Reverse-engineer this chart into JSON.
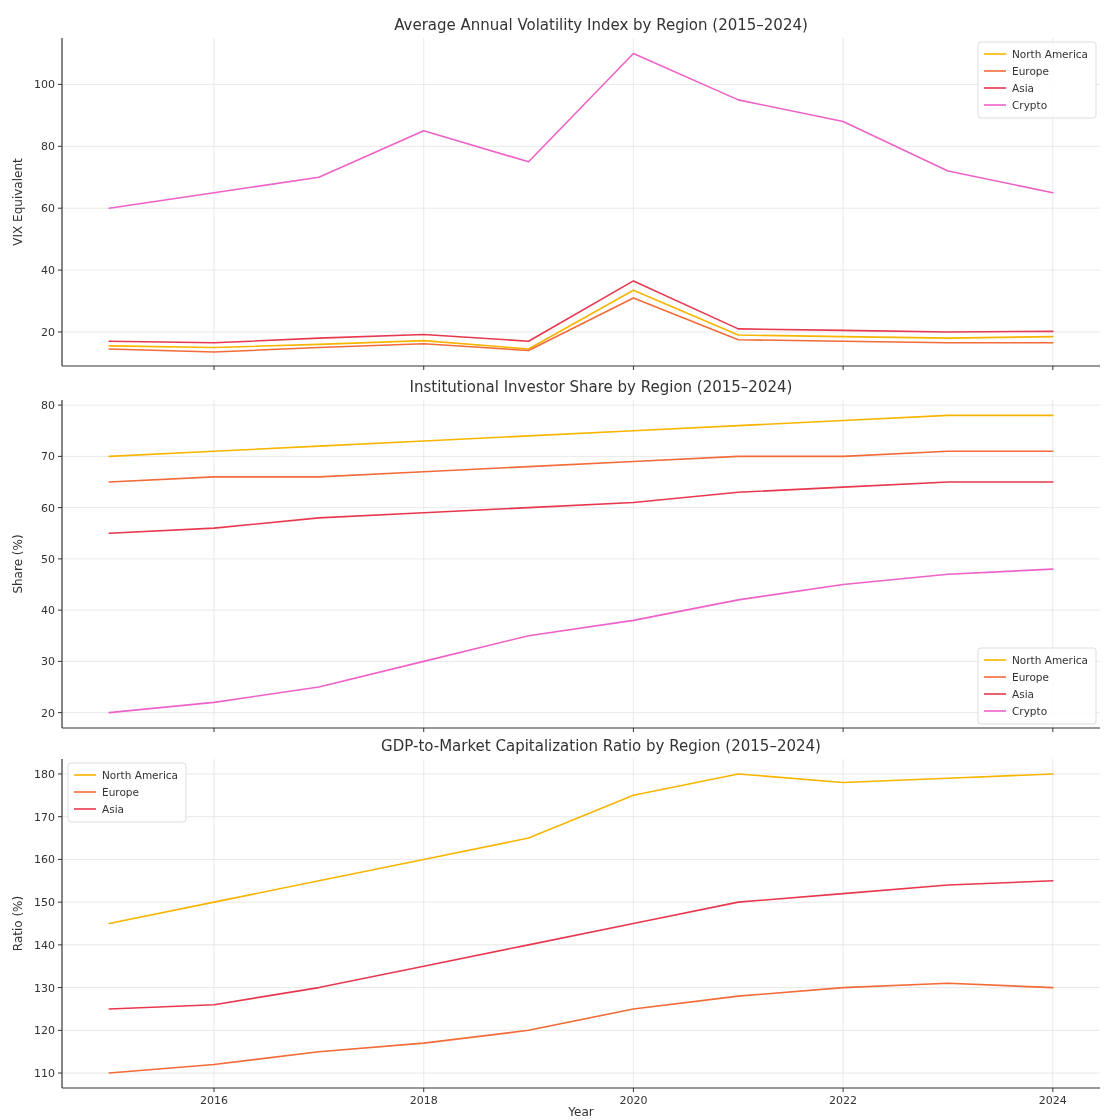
{
  "chart_data": [
    {
      "type": "line",
      "title": "Average Annual Volatility Index by Region (2015–2024)",
      "ylabel": "VIX Equivalent",
      "x": [
        2015,
        2016,
        2017,
        2018,
        2019,
        2020,
        2021,
        2022,
        2023,
        2024
      ],
      "xlim": [
        2014.55,
        2024.45
      ],
      "xticks": [
        2016,
        2018,
        2020,
        2022,
        2024
      ],
      "ylim": [
        9,
        115
      ],
      "yticks": [
        20,
        40,
        60,
        80,
        100
      ],
      "grid": true,
      "legend": "top right",
      "tick_labels": "y",
      "series": [
        {
          "name": "North America",
          "color": "#f7b500",
          "values": [
            15.5,
            15,
            16,
            17.2,
            14.5,
            33.5,
            19,
            18.5,
            18,
            18.5
          ]
        },
        {
          "name": "Europe",
          "color": "#f26b38",
          "values": [
            14.5,
            13.5,
            15,
            16.2,
            14,
            31,
            17.5,
            17,
            16.5,
            16.5
          ]
        },
        {
          "name": "Asia",
          "color": "#e8384f",
          "values": [
            17,
            16.5,
            18,
            19.2,
            17,
            36.5,
            21,
            20.5,
            20,
            20.2
          ]
        },
        {
          "name": "Crypto",
          "color": "#ee62c8",
          "values": [
            60,
            65,
            70,
            85,
            75,
            110,
            95,
            88,
            72,
            65
          ]
        }
      ]
    },
    {
      "type": "line",
      "title": "Institutional Investor Share by Region (2015–2024)",
      "ylabel": "Share (%)",
      "x": [
        2015,
        2016,
        2017,
        2018,
        2019,
        2020,
        2021,
        2022,
        2023,
        2024
      ],
      "xlim": [
        2014.55,
        2024.45
      ],
      "xticks": [
        2016,
        2018,
        2020,
        2022,
        2024
      ],
      "ylim": [
        17,
        81
      ],
      "yticks": [
        20,
        30,
        40,
        50,
        60,
        70,
        80
      ],
      "grid": true,
      "legend": "bottom right",
      "tick_labels": "y",
      "series": [
        {
          "name": "North America",
          "color": "#f7b500",
          "values": [
            70,
            71,
            72,
            73,
            74,
            75,
            76,
            77,
            78,
            78
          ]
        },
        {
          "name": "Europe",
          "color": "#f26b38",
          "values": [
            65,
            66,
            66,
            67,
            68,
            69,
            70,
            70,
            71,
            71
          ]
        },
        {
          "name": "Asia",
          "color": "#e8384f",
          "values": [
            55,
            56,
            58,
            59,
            60,
            61,
            63,
            64,
            65,
            65
          ]
        },
        {
          "name": "Crypto",
          "color": "#ee62c8",
          "values": [
            20,
            22,
            25,
            30,
            35,
            38,
            42,
            45,
            47,
            48
          ]
        }
      ]
    },
    {
      "type": "line",
      "title": "GDP-to-Market Capitalization Ratio by Region (2015–2024)",
      "xlabel": "Year",
      "ylabel": "Ratio (%)",
      "x": [
        2015,
        2016,
        2017,
        2018,
        2019,
        2020,
        2021,
        2022,
        2023,
        2024
      ],
      "xlim": [
        2014.55,
        2024.45
      ],
      "xticks": [
        2016,
        2018,
        2020,
        2022,
        2024
      ],
      "ylim": [
        106.5,
        183.5
      ],
      "yticks": [
        110,
        120,
        130,
        140,
        150,
        160,
        170,
        180
      ],
      "grid": true,
      "legend": "top left",
      "series": [
        {
          "name": "North America",
          "color": "#f7b500",
          "values": [
            145,
            150,
            155,
            160,
            165,
            175,
            180,
            178,
            179,
            180
          ]
        },
        {
          "name": "Europe",
          "color": "#f26b38",
          "values": [
            110,
            112,
            115,
            117,
            120,
            125,
            128,
            130,
            131,
            130
          ]
        },
        {
          "name": "Asia",
          "color": "#e8384f",
          "values": [
            125,
            126,
            130,
            135,
            140,
            145,
            150,
            152,
            154,
            155
          ]
        }
      ]
    }
  ]
}
